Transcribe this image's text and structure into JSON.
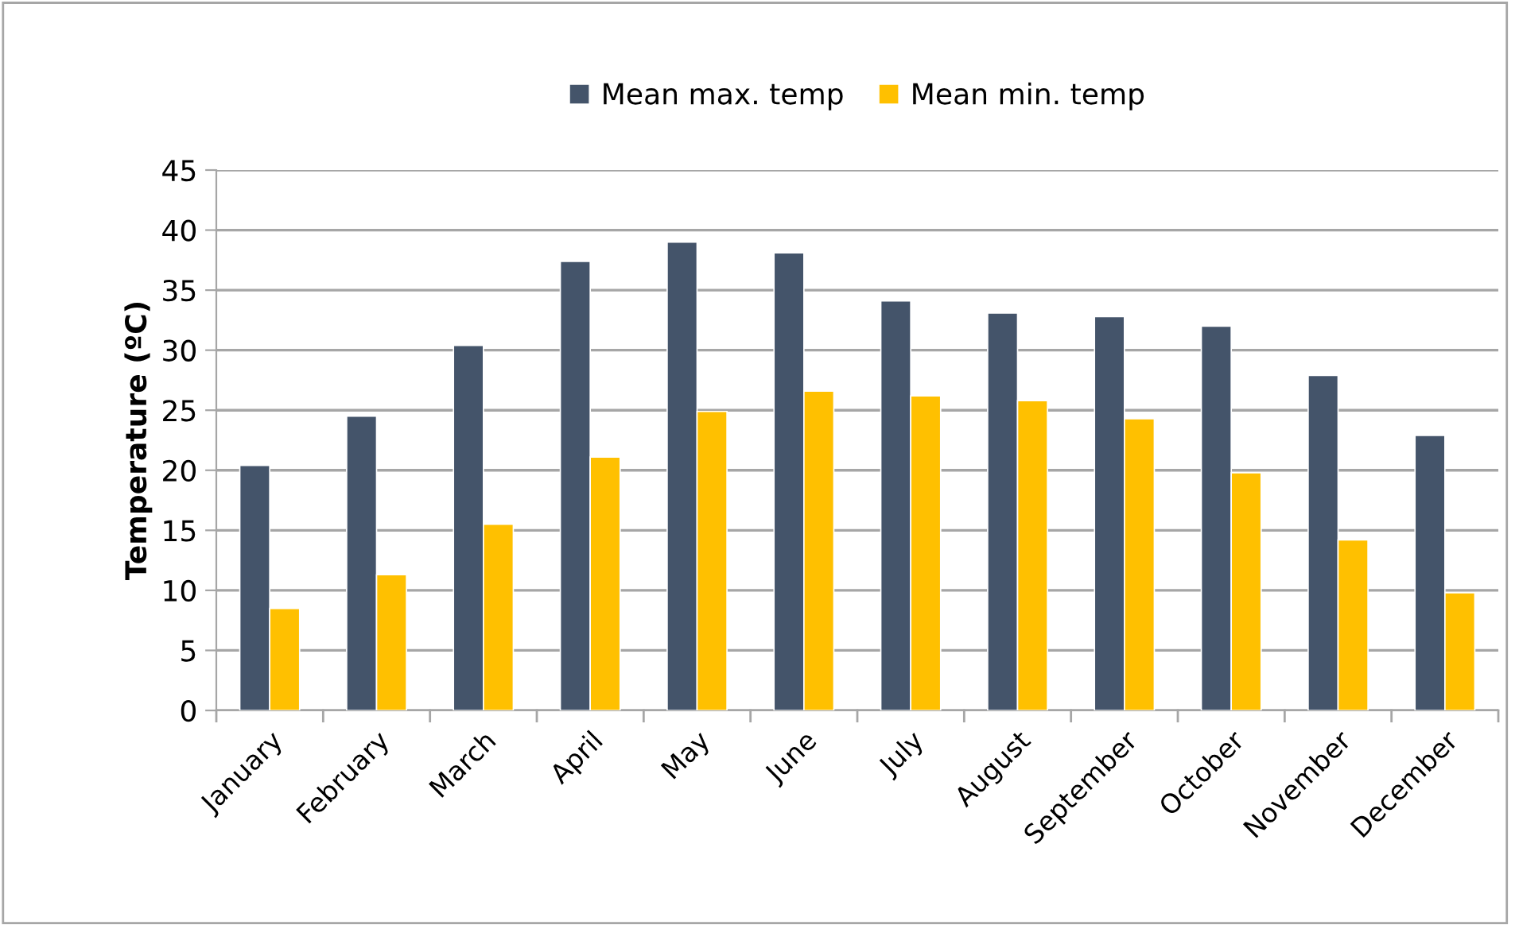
{
  "chart_data": {
    "type": "bar",
    "ylabel": "Temperature (ºC)",
    "categories": [
      "January",
      "February",
      "March",
      "April",
      "May",
      "June",
      "July",
      "August",
      "September",
      "October",
      "November",
      "December"
    ],
    "series": [
      {
        "name": "Mean max. temp",
        "color": "#44546a",
        "values": [
          20.4,
          24.5,
          30.4,
          37.4,
          39.0,
          38.1,
          34.1,
          33.1,
          32.8,
          32.0,
          27.9,
          22.9
        ]
      },
      {
        "name": "Mean min. temp",
        "color": "#ffc000",
        "values": [
          8.5,
          11.3,
          15.5,
          21.1,
          24.9,
          26.6,
          26.2,
          25.8,
          24.3,
          19.8,
          14.2,
          9.8
        ]
      }
    ],
    "ylim": [
      0,
      45
    ],
    "yticks": [
      0,
      5,
      10,
      15,
      20,
      25,
      30,
      35,
      40,
      45
    ],
    "grid": "y",
    "legend": "top"
  }
}
